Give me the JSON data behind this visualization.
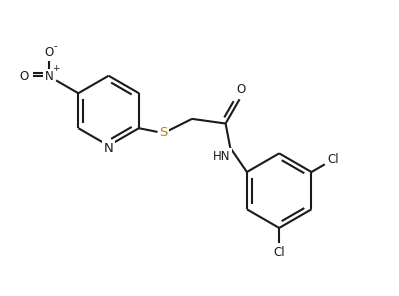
{
  "bg_color": "#ffffff",
  "bond_color": "#1a1a1a",
  "s_color": "#b8860b",
  "line_width": 1.5,
  "font_size": 8.5,
  "figsize": [
    3.99,
    2.96
  ],
  "dpi": 100,
  "xlim": [
    0.0,
    8.5
  ],
  "ylim": [
    0.0,
    6.0
  ]
}
